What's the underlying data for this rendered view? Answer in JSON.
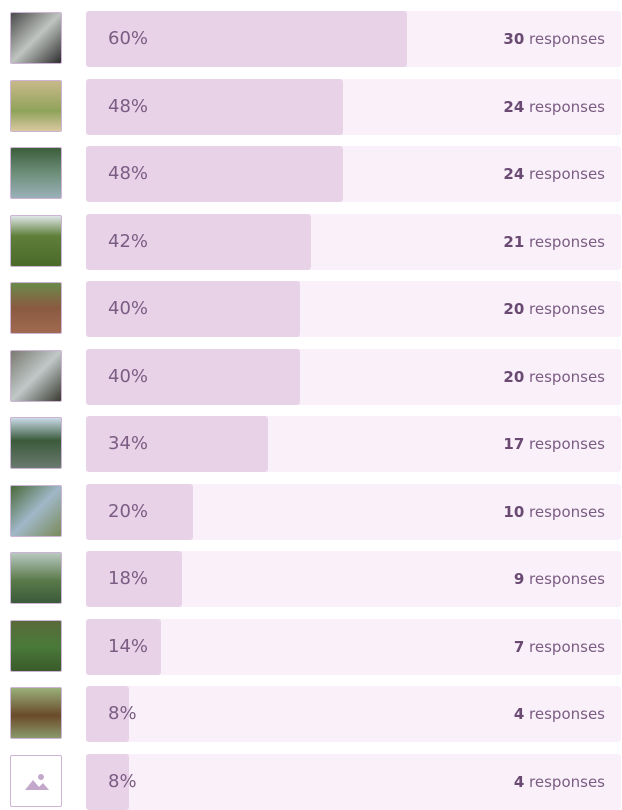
{
  "responses_word": "responses",
  "rows": [
    {
      "percent": 60,
      "percent_label": "60%",
      "count": 30
    },
    {
      "percent": 48,
      "percent_label": "48%",
      "count": 24
    },
    {
      "percent": 48,
      "percent_label": "48%",
      "count": 24
    },
    {
      "percent": 42,
      "percent_label": "42%",
      "count": 21
    },
    {
      "percent": 40,
      "percent_label": "40%",
      "count": 20
    },
    {
      "percent": 40,
      "percent_label": "40%",
      "count": 20
    },
    {
      "percent": 34,
      "percent_label": "34%",
      "count": 17
    },
    {
      "percent": 20,
      "percent_label": "20%",
      "count": 10
    },
    {
      "percent": 18,
      "percent_label": "18%",
      "count": 9
    },
    {
      "percent": 14,
      "percent_label": "14%",
      "count": 7
    },
    {
      "percent": 8,
      "percent_label": "8%",
      "count": 4
    },
    {
      "percent": 8,
      "percent_label": "8%",
      "count": 4
    }
  ]
}
